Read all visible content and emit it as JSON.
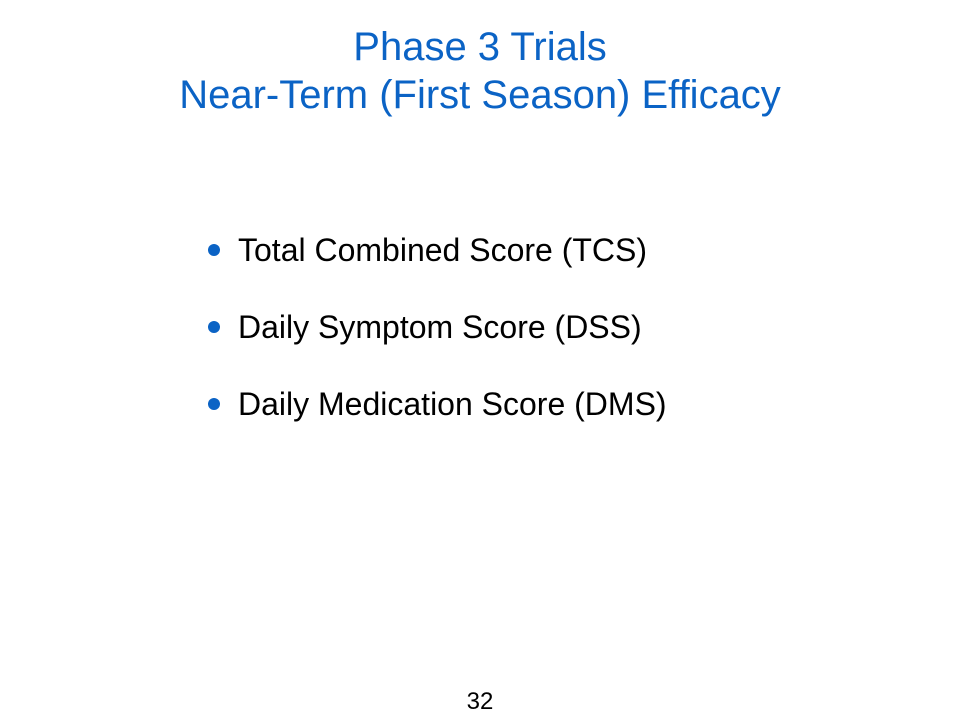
{
  "colors": {
    "title": "#0b63c5",
    "bullet": "#0b63c5",
    "text": "#000000",
    "background": "#ffffff"
  },
  "slide": {
    "title_line_1": "Phase 3 Trials",
    "title_line_2": "Near-Term (First Season) Efficacy",
    "bullets": [
      {
        "icon": "filled-circle-bullet-icon",
        "text": "Total Combined Score (TCS)"
      },
      {
        "icon": "filled-circle-bullet-icon",
        "text": "Daily Symptom Score (DSS)"
      },
      {
        "icon": "filled-circle-bullet-icon",
        "text": "Daily Medication Score (DMS)"
      }
    ],
    "page_number": "32"
  }
}
